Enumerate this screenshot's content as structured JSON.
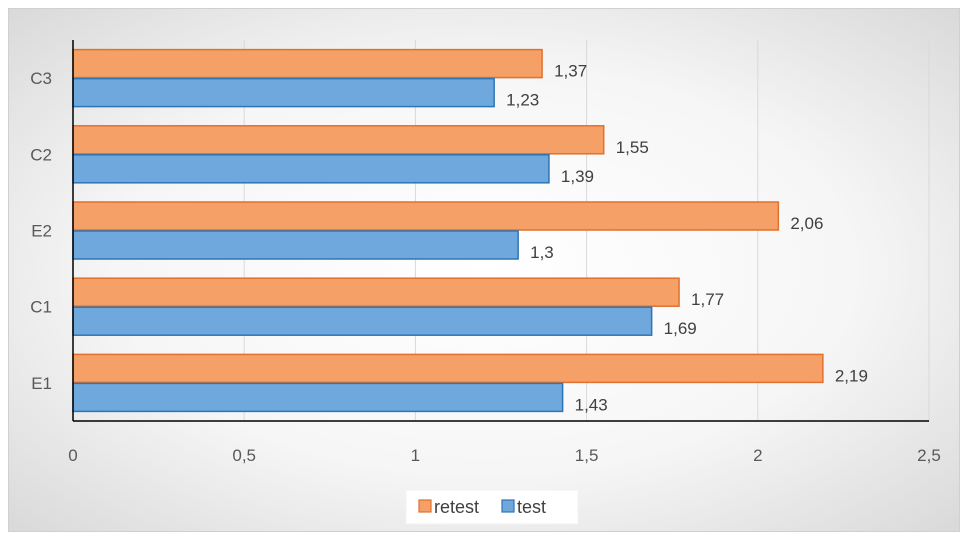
{
  "chart_data": {
    "type": "bar",
    "orientation": "horizontal",
    "categories": [
      "E1",
      "C1",
      "E2",
      "C2",
      "C3"
    ],
    "series": [
      {
        "name": "test",
        "color": "#6fa8dc",
        "border": "#2e75b6",
        "values": [
          1.43,
          1.69,
          1.3,
          1.39,
          1.23
        ],
        "labels": [
          "1,43",
          "1,69",
          "1,3",
          "1,39",
          "1,23"
        ]
      },
      {
        "name": "retest",
        "color": "#f4a066",
        "border": "#e2702e",
        "values": [
          2.19,
          1.77,
          2.06,
          1.55,
          1.37
        ],
        "labels": [
          "2,19",
          "1,77",
          "2,06",
          "1,55",
          "1,37"
        ]
      }
    ],
    "xlim": [
      0,
      2.5
    ],
    "xticks": [
      0,
      0.5,
      1,
      1.5,
      2,
      2.5
    ],
    "xtick_labels": [
      "0",
      "0,5",
      "1",
      "1,5",
      "2",
      "2,5"
    ],
    "grid": "vertical",
    "legend": {
      "position": "bottom",
      "order": [
        "retest",
        "test"
      ]
    }
  }
}
